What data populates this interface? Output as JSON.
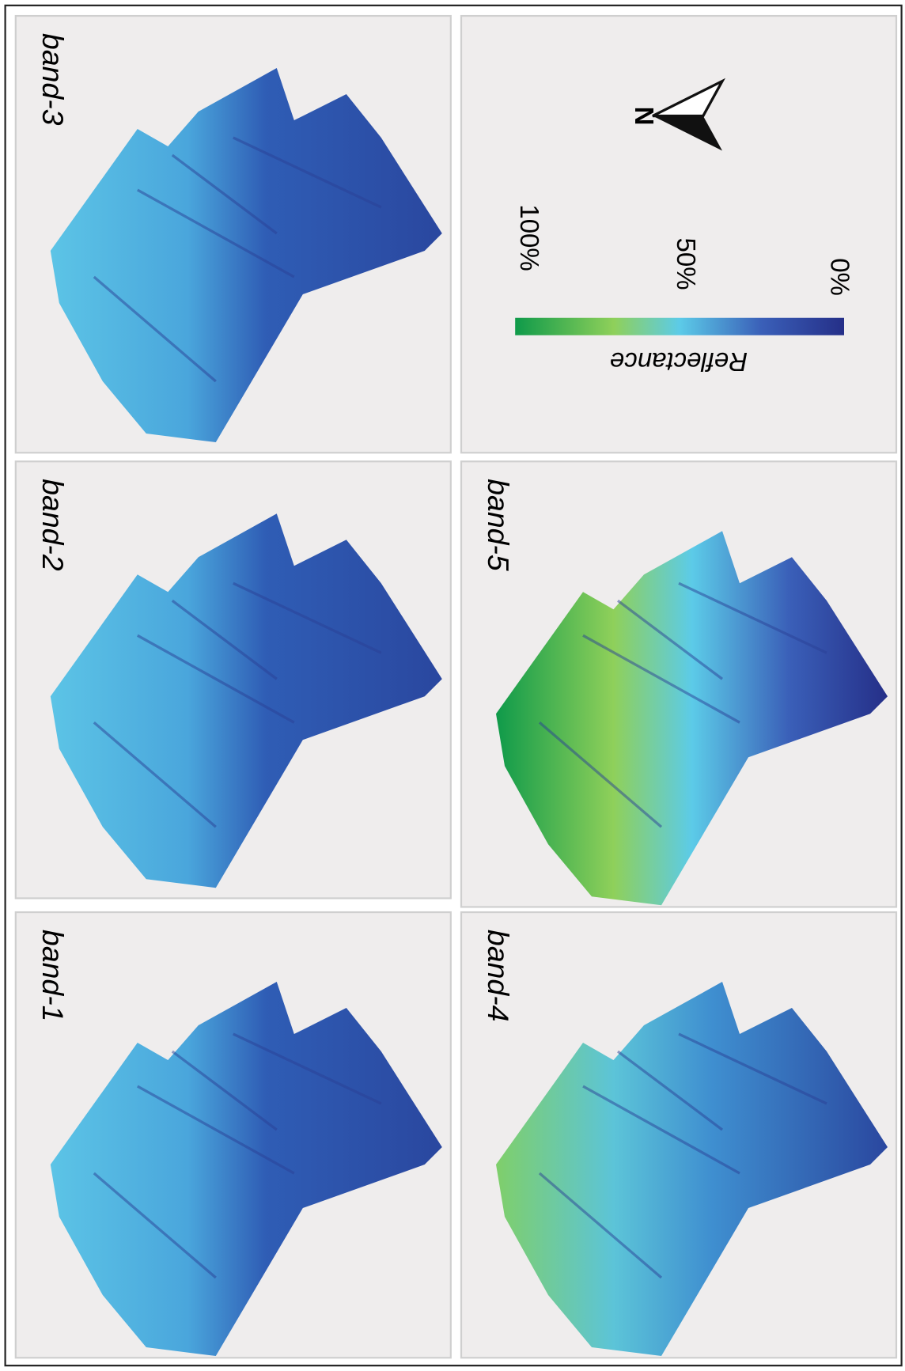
{
  "panels": [
    {
      "label": "band-1"
    },
    {
      "label": "band-2"
    },
    {
      "label": "band-3"
    },
    {
      "label": "band-4"
    },
    {
      "label": "band-5"
    }
  ],
  "colorbar": {
    "title": "Reflectance",
    "labels": [
      "100%",
      "50%",
      "0%"
    ]
  },
  "north": "N"
}
